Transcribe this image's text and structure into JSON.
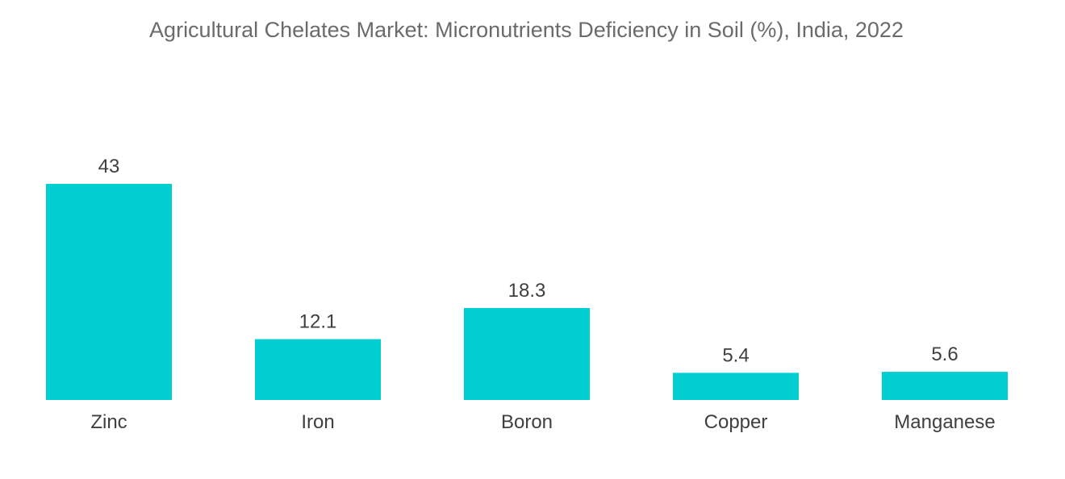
{
  "chart_data": {
    "type": "bar",
    "title": "Agricultural Chelates Market: Micronutrients Deficiency in Soil (%), India, 2022",
    "categories": [
      "Zinc",
      "Iron",
      "Boron",
      "Copper",
      "Manganese"
    ],
    "values": [
      43,
      12.1,
      18.3,
      5.4,
      5.6
    ],
    "value_labels": [
      "43",
      "12.1",
      "18.3",
      "5.4",
      "5.6"
    ],
    "xlabel": "",
    "ylabel": "",
    "ylim": [
      0,
      43
    ],
    "grid": false,
    "legend": "none",
    "bar_color": "#00CED1"
  }
}
